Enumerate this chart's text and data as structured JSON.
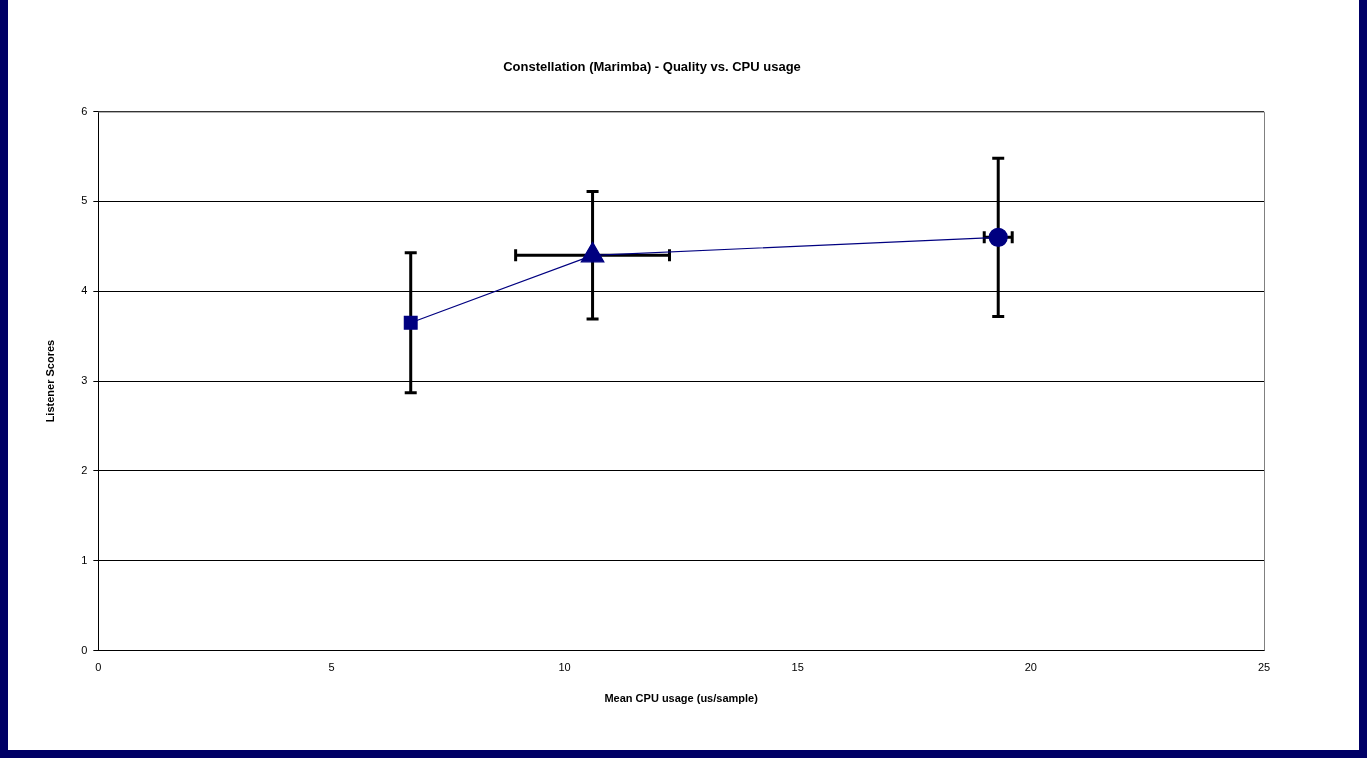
{
  "chart_data": {
    "type": "line",
    "title": "Constellation (Marimba) - Quality vs. CPU usage",
    "xlabel": "Mean CPU usage (us/sample)",
    "ylabel": "Listener Scores",
    "x": [
      6.7,
      10.6,
      19.3
    ],
    "series": [
      {
        "color": "#000080",
        "values": [
          3.65,
          4.4,
          4.6
        ],
        "errors": [
          0.78,
          0.71,
          0.88
        ],
        "xerrors": [
          null,
          1.65,
          0.3
        ]
      }
    ],
    "marker": [
      "square",
      "triangle",
      "circle"
    ],
    "line_style": "solid",
    "xlim": [
      0,
      25
    ],
    "xticks": [
      0,
      5,
      10,
      15,
      20,
      25
    ],
    "ylim": [
      0,
      6
    ],
    "yticks": [
      0,
      1,
      2,
      3,
      4,
      5,
      6
    ],
    "grid": "y",
    "legend": false
  }
}
